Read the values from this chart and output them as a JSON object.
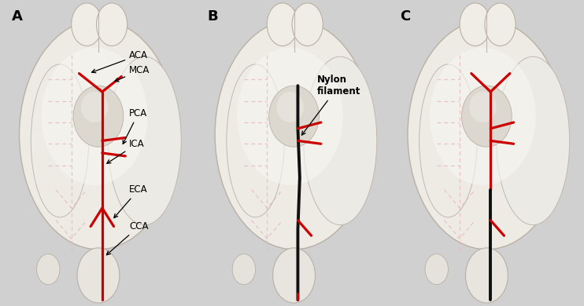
{
  "fig_width": 7.42,
  "fig_height": 3.9,
  "dpi": 100,
  "background_color": "#d0d0d0",
  "panel_labels": [
    "A",
    "B",
    "C"
  ],
  "panel_label_fontsize": 13,
  "panel_label_weight": "bold",
  "annotation_fontsize": 8.5,
  "brain_bg": "#f5f2ee",
  "brain_edge": "#c8c0b8",
  "brain_shadow": "#e0dbd5",
  "sulci_color": "#e8b8b8",
  "sulci_lw": 0.9,
  "red": "#cc0000",
  "black_nylon": "#101010",
  "artery_lw": 2.3,
  "nylon_lw": 2.8,
  "panels": [
    "A",
    "B",
    "C"
  ]
}
